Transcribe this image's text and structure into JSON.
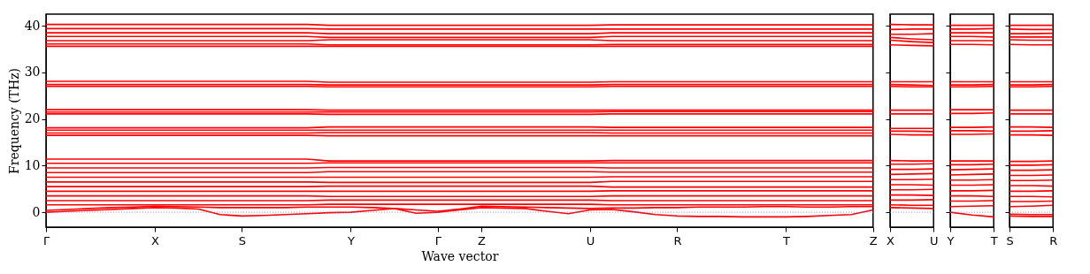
{
  "chart_data": [
    {
      "type": "line",
      "xlabel": "Wave vector",
      "ylabel": "Frequency (THz)",
      "ylim": [
        -3.2,
        42.5
      ],
      "yticks": [
        0,
        10,
        20,
        30,
        40
      ],
      "categories": [
        "Γ",
        null,
        null,
        null,
        null,
        "X",
        null,
        null,
        null,
        "S",
        null,
        null,
        null,
        null,
        "Y",
        null,
        null,
        null,
        "Γ",
        null,
        "Z",
        null,
        null,
        null,
        null,
        "U",
        null,
        null,
        null,
        "R",
        null,
        null,
        null,
        null,
        "T",
        null,
        null,
        null,
        "Z"
      ],
      "ref_lines": [
        {
          "axis": "y",
          "value": 0,
          "color": "#8080ff",
          "line_style": "dotted"
        }
      ],
      "series": [
        {
          "color": "#ff0000",
          "values": [
            40.3,
            40.3,
            40.3,
            40.3,
            40.3,
            40.3,
            40.3,
            40.3,
            40.3,
            40.3,
            40.3,
            40.3,
            40.3,
            40.1,
            40.1,
            40.1,
            40.1,
            40.1,
            40.1,
            40.1,
            40.1,
            40.1,
            40.1,
            40.1,
            40.1,
            40.1,
            40.2,
            40.2,
            40.2,
            40.2,
            40.2,
            40.2,
            40.2,
            40.2,
            40.2,
            40.2,
            40.2,
            40.2,
            40.2
          ]
        },
        {
          "color": "#ff0000",
          "values": [
            39.4,
            39.4,
            39.4,
            39.4,
            39.4,
            39.4,
            39.4,
            39.4,
            39.4,
            39.4,
            39.4,
            39.4,
            39.4,
            39.3,
            39.3,
            39.3,
            39.3,
            39.3,
            39.3,
            39.3,
            39.3,
            39.3,
            39.3,
            39.3,
            39.3,
            39.3,
            39.3,
            39.3,
            39.3,
            39.3,
            39.3,
            39.3,
            39.3,
            39.3,
            39.3,
            39.3,
            39.3,
            39.3,
            39.3
          ]
        },
        {
          "color": "#ff0000",
          "values": [
            38.5,
            38.5,
            38.5,
            38.5,
            38.5,
            38.5,
            38.5,
            38.5,
            38.5,
            38.5,
            38.5,
            38.5,
            38.5,
            38.3,
            38.3,
            38.3,
            38.3,
            38.3,
            38.3,
            38.3,
            38.3,
            38.3,
            38.3,
            38.3,
            38.3,
            38.3,
            38.5,
            38.5,
            38.5,
            38.5,
            38.5,
            38.5,
            38.5,
            38.5,
            38.5,
            38.5,
            38.5,
            38.5,
            38.5
          ]
        },
        {
          "color": "#ff0000",
          "values": [
            37.7,
            37.7,
            37.7,
            37.7,
            37.7,
            37.7,
            37.7,
            37.7,
            37.7,
            37.7,
            37.7,
            37.7,
            37.7,
            37.5,
            37.5,
            37.5,
            37.5,
            37.5,
            37.5,
            37.5,
            37.5,
            37.5,
            37.5,
            37.5,
            37.5,
            37.5,
            37.7,
            37.7,
            37.7,
            37.7,
            37.7,
            37.7,
            37.7,
            37.7,
            37.7,
            37.7,
            37.7,
            37.7,
            37.7
          ]
        },
        {
          "color": "#ff0000",
          "values": [
            36.8,
            36.8,
            36.8,
            36.8,
            36.8,
            36.8,
            36.8,
            36.8,
            36.8,
            36.8,
            36.8,
            36.8,
            36.8,
            37.0,
            37.0,
            37.0,
            37.0,
            37.0,
            37.0,
            37.0,
            37.0,
            37.0,
            37.0,
            37.0,
            37.0,
            37.0,
            36.8,
            36.8,
            36.8,
            36.8,
            36.8,
            36.8,
            36.8,
            36.8,
            36.8,
            36.8,
            36.8,
            36.8,
            36.8
          ]
        },
        {
          "color": "#ff0000",
          "values": [
            36.1,
            36.1,
            36.1,
            36.1,
            36.1,
            36.1,
            36.1,
            36.1,
            36.1,
            36.1,
            36.1,
            36.1,
            36.1,
            35.9,
            35.9,
            35.9,
            35.9,
            35.9,
            35.9,
            35.9,
            35.9,
            35.9,
            35.9,
            35.9,
            35.9,
            35.9,
            36.0,
            36.0,
            36.0,
            36.0,
            36.0,
            36.0,
            36.0,
            36.0,
            36.0,
            36.0,
            36.0,
            36.0,
            36.0
          ]
        },
        {
          "color": "#ff0000",
          "values": [
            35.6,
            35.6,
            35.6,
            35.6,
            35.6,
            35.6,
            35.6,
            35.6,
            35.6,
            35.6,
            35.6,
            35.6,
            35.6,
            35.6,
            35.6,
            35.6,
            35.6,
            35.6,
            35.6,
            35.6,
            35.6,
            35.6,
            35.6,
            35.6,
            35.6,
            35.6,
            35.6,
            35.6,
            35.6,
            35.6,
            35.6,
            35.6,
            35.6,
            35.6,
            35.6,
            35.6,
            35.6,
            35.6,
            35.6
          ]
        },
        {
          "color": "#ff0000",
          "values": [
            28.1,
            28.1,
            28.1,
            28.1,
            28.1,
            28.1,
            28.1,
            28.1,
            28.1,
            28.1,
            28.1,
            28.1,
            28.1,
            27.9,
            27.9,
            27.9,
            27.9,
            27.9,
            27.9,
            27.9,
            27.9,
            27.9,
            27.9,
            27.9,
            27.9,
            27.9,
            28.0,
            28.0,
            28.0,
            28.0,
            28.0,
            28.0,
            28.0,
            28.0,
            28.0,
            28.0,
            28.0,
            28.0,
            28.0
          ]
        },
        {
          "color": "#ff0000",
          "values": [
            27.4,
            27.4,
            27.4,
            27.4,
            27.4,
            27.4,
            27.4,
            27.4,
            27.4,
            27.4,
            27.4,
            27.4,
            27.4,
            27.3,
            27.3,
            27.3,
            27.3,
            27.3,
            27.3,
            27.3,
            27.3,
            27.3,
            27.3,
            27.3,
            27.3,
            27.3,
            27.4,
            27.4,
            27.4,
            27.4,
            27.4,
            27.4,
            27.4,
            27.4,
            27.4,
            27.4,
            27.4,
            27.4,
            27.4
          ]
        },
        {
          "color": "#ff0000",
          "values": [
            27.0,
            27.0,
            27.0,
            27.0,
            27.0,
            27.0,
            27.0,
            27.0,
            27.0,
            27.0,
            27.0,
            27.0,
            27.0,
            26.9,
            26.9,
            26.9,
            26.9,
            26.9,
            26.9,
            26.9,
            26.9,
            26.9,
            26.9,
            26.9,
            26.9,
            26.9,
            27.0,
            27.0,
            27.0,
            27.0,
            27.0,
            27.0,
            27.0,
            27.0,
            27.0,
            27.0,
            27.0,
            27.0,
            27.0
          ]
        },
        {
          "color": "#ff0000",
          "values": [
            22.0,
            22.0,
            22.0,
            22.0,
            22.0,
            22.0,
            22.0,
            22.0,
            22.0,
            22.0,
            22.0,
            22.0,
            22.0,
            21.9,
            21.9,
            21.9,
            21.9,
            21.9,
            21.9,
            21.9,
            21.9,
            21.9,
            21.9,
            21.9,
            21.9,
            21.9,
            21.9,
            21.9,
            21.9,
            21.9,
            21.9,
            21.9,
            21.9,
            21.9,
            21.9,
            21.9,
            21.9,
            21.9,
            21.9
          ]
        },
        {
          "color": "#ff0000",
          "values": [
            21.5,
            21.5,
            21.5,
            21.5,
            21.5,
            21.5,
            21.5,
            21.5,
            21.5,
            21.5,
            21.5,
            21.5,
            21.5,
            21.5,
            21.5,
            21.5,
            21.5,
            21.5,
            21.5,
            21.5,
            21.5,
            21.5,
            21.5,
            21.5,
            21.5,
            21.5,
            21.6,
            21.6,
            21.6,
            21.6,
            21.6,
            21.6,
            21.6,
            21.6,
            21.6,
            21.6,
            21.6,
            21.6,
            21.6
          ]
        },
        {
          "color": "#ff0000",
          "values": [
            21.1,
            21.1,
            21.1,
            21.1,
            21.1,
            21.1,
            21.1,
            21.1,
            21.1,
            21.1,
            21.1,
            21.1,
            21.1,
            21.0,
            21.0,
            21.0,
            21.0,
            21.0,
            21.0,
            21.0,
            21.0,
            21.0,
            21.0,
            21.0,
            21.0,
            21.0,
            21.1,
            21.1,
            21.1,
            21.1,
            21.1,
            21.1,
            21.1,
            21.1,
            21.1,
            21.1,
            21.1,
            21.1,
            21.1
          ]
        },
        {
          "color": "#ff0000",
          "values": [
            18.1,
            18.1,
            18.1,
            18.1,
            18.1,
            18.1,
            18.1,
            18.1,
            18.1,
            18.1,
            18.1,
            18.1,
            18.1,
            18.3,
            18.3,
            18.3,
            18.3,
            18.3,
            18.3,
            18.3,
            18.3,
            18.3,
            18.3,
            18.3,
            18.3,
            18.3,
            18.2,
            18.2,
            18.2,
            18.2,
            18.2,
            18.2,
            18.2,
            18.2,
            18.2,
            18.2,
            18.2,
            18.2,
            18.2
          ]
        },
        {
          "color": "#ff0000",
          "values": [
            17.6,
            17.6,
            17.6,
            17.6,
            17.6,
            17.6,
            17.6,
            17.6,
            17.6,
            17.6,
            17.6,
            17.6,
            17.6,
            17.6,
            17.6,
            17.6,
            17.6,
            17.6,
            17.6,
            17.6,
            17.6,
            17.6,
            17.6,
            17.6,
            17.6,
            17.6,
            17.6,
            17.6,
            17.6,
            17.6,
            17.6,
            17.6,
            17.6,
            17.6,
            17.6,
            17.6,
            17.6,
            17.6,
            17.6
          ]
        },
        {
          "color": "#ff0000",
          "values": [
            17.0,
            17.0,
            17.0,
            17.0,
            17.0,
            17.0,
            17.0,
            17.0,
            17.0,
            17.0,
            17.0,
            17.0,
            17.0,
            17.1,
            17.1,
            17.1,
            17.1,
            17.1,
            17.1,
            17.1,
            17.1,
            17.1,
            17.1,
            17.1,
            17.1,
            17.1,
            17.0,
            17.0,
            17.0,
            17.0,
            17.0,
            17.0,
            17.0,
            17.0,
            17.0,
            17.0,
            17.0,
            17.0,
            17.0
          ]
        },
        {
          "color": "#ff0000",
          "values": [
            16.5,
            16.5,
            16.5,
            16.5,
            16.5,
            16.5,
            16.5,
            16.5,
            16.5,
            16.5,
            16.5,
            16.5,
            16.5,
            16.4,
            16.4,
            16.4,
            16.4,
            16.4,
            16.4,
            16.4,
            16.4,
            16.4,
            16.4,
            16.4,
            16.4,
            16.4,
            16.4,
            16.4,
            16.4,
            16.4,
            16.4,
            16.4,
            16.4,
            16.4,
            16.4,
            16.4,
            16.4,
            16.4,
            16.4
          ]
        },
        {
          "color": "#ff0000",
          "values": [
            11.4,
            11.4,
            11.4,
            11.4,
            11.4,
            11.4,
            11.4,
            11.4,
            11.4,
            11.4,
            11.4,
            11.4,
            11.4,
            11.0,
            11.0,
            11.0,
            11.0,
            11.0,
            11.0,
            11.0,
            11.0,
            11.0,
            11.0,
            11.0,
            11.0,
            11.0,
            11.1,
            11.1,
            11.1,
            11.1,
            11.1,
            11.1,
            11.1,
            11.1,
            11.1,
            11.1,
            11.1,
            11.1,
            11.1
          ]
        },
        {
          "color": "#ff0000",
          "values": [
            10.5,
            10.5,
            10.5,
            10.5,
            10.5,
            10.5,
            10.5,
            10.5,
            10.5,
            10.5,
            10.5,
            10.5,
            10.5,
            10.6,
            10.6,
            10.6,
            10.6,
            10.6,
            10.6,
            10.6,
            10.6,
            10.6,
            10.6,
            10.6,
            10.6,
            10.6,
            10.6,
            10.6,
            10.6,
            10.6,
            10.6,
            10.6,
            10.6,
            10.6,
            10.6,
            10.6,
            10.6,
            10.6,
            10.6
          ]
        },
        {
          "color": "#ff0000",
          "values": [
            9.5,
            9.5,
            9.5,
            9.5,
            9.5,
            9.5,
            9.5,
            9.5,
            9.5,
            9.5,
            9.5,
            9.5,
            9.5,
            9.6,
            9.6,
            9.6,
            9.6,
            9.6,
            9.6,
            9.6,
            9.6,
            9.6,
            9.6,
            9.6,
            9.6,
            9.6,
            9.5,
            9.5,
            9.5,
            9.5,
            9.5,
            9.5,
            9.5,
            9.5,
            9.5,
            9.5,
            9.5,
            9.5,
            9.5
          ]
        },
        {
          "color": "#ff0000",
          "values": [
            8.5,
            8.5,
            8.5,
            8.5,
            8.5,
            8.5,
            8.5,
            8.5,
            8.5,
            8.5,
            8.5,
            8.5,
            8.5,
            8.7,
            8.7,
            8.7,
            8.7,
            8.7,
            8.7,
            8.7,
            8.7,
            8.7,
            8.7,
            8.7,
            8.7,
            8.7,
            8.6,
            8.6,
            8.6,
            8.6,
            8.6,
            8.6,
            8.6,
            8.6,
            8.6,
            8.6,
            8.6,
            8.6,
            8.6
          ]
        },
        {
          "color": "#ff0000",
          "values": [
            7.5,
            7.5,
            7.5,
            7.5,
            7.5,
            7.5,
            7.5,
            7.5,
            7.5,
            7.5,
            7.5,
            7.5,
            7.5,
            7.5,
            7.5,
            7.5,
            7.5,
            7.5,
            7.5,
            7.5,
            7.5,
            7.5,
            7.5,
            7.5,
            7.5,
            7.5,
            7.6,
            7.6,
            7.6,
            7.6,
            7.6,
            7.6,
            7.6,
            7.6,
            7.6,
            7.6,
            7.6,
            7.6,
            7.6
          ]
        },
        {
          "color": "#ff0000",
          "values": [
            6.5,
            6.5,
            6.5,
            6.5,
            6.5,
            6.5,
            6.5,
            6.5,
            6.5,
            6.5,
            6.5,
            6.5,
            6.5,
            6.4,
            6.4,
            6.4,
            6.4,
            6.4,
            6.4,
            6.4,
            6.4,
            6.4,
            6.4,
            6.4,
            6.4,
            6.4,
            6.6,
            6.6,
            6.6,
            6.6,
            6.6,
            6.6,
            6.6,
            6.6,
            6.6,
            6.6,
            6.6,
            6.6,
            6.6
          ]
        },
        {
          "color": "#ff0000",
          "values": [
            5.5,
            5.5,
            5.5,
            5.5,
            5.5,
            5.5,
            5.5,
            5.5,
            5.5,
            5.5,
            5.5,
            5.5,
            5.5,
            5.6,
            5.6,
            5.6,
            5.6,
            5.6,
            5.6,
            5.6,
            5.6,
            5.6,
            5.6,
            5.6,
            5.6,
            5.6,
            5.4,
            5.4,
            5.4,
            5.4,
            5.4,
            5.4,
            5.4,
            5.4,
            5.4,
            5.4,
            5.4,
            5.4,
            5.4
          ]
        },
        {
          "color": "#ff0000",
          "values": [
            4.5,
            4.5,
            4.5,
            4.5,
            4.5,
            4.5,
            4.5,
            4.5,
            4.5,
            4.5,
            4.5,
            4.5,
            4.5,
            4.5,
            4.5,
            4.5,
            4.5,
            4.5,
            4.5,
            4.5,
            4.5,
            4.5,
            4.5,
            4.5,
            4.5,
            4.5,
            4.6,
            4.6,
            4.6,
            4.6,
            4.6,
            4.6,
            4.6,
            4.6,
            4.6,
            4.6,
            4.6,
            4.6,
            4.6
          ]
        },
        {
          "color": "#ff0000",
          "values": [
            3.5,
            3.5,
            3.5,
            3.5,
            3.5,
            3.5,
            3.5,
            3.5,
            3.5,
            3.5,
            3.5,
            3.5,
            3.5,
            3.4,
            3.4,
            3.4,
            3.4,
            3.4,
            3.4,
            3.4,
            3.4,
            3.4,
            3.4,
            3.4,
            3.4,
            3.4,
            3.5,
            3.5,
            3.5,
            3.5,
            3.5,
            3.5,
            3.5,
            3.5,
            3.5,
            3.5,
            3.5,
            3.5,
            3.5
          ]
        },
        {
          "color": "#ff0000",
          "values": [
            2.5,
            2.5,
            2.5,
            2.5,
            2.5,
            2.5,
            2.5,
            2.5,
            2.5,
            2.5,
            2.5,
            2.5,
            2.5,
            2.6,
            2.6,
            2.6,
            2.6,
            2.6,
            2.6,
            2.6,
            2.6,
            2.6,
            2.6,
            2.6,
            2.6,
            2.6,
            2.5,
            2.5,
            2.5,
            2.5,
            2.5,
            2.5,
            2.5,
            2.5,
            2.5,
            2.5,
            2.5,
            2.5,
            2.5
          ]
        },
        {
          "color": "#ff0000",
          "values": [
            1.6,
            1.6,
            1.6,
            1.6,
            1.6,
            1.6,
            1.6,
            1.6,
            1.6,
            1.6,
            1.6,
            1.6,
            1.6,
            1.7,
            1.7,
            1.7,
            1.7,
            1.7,
            1.7,
            1.7,
            1.7,
            1.7,
            1.7,
            1.7,
            1.7,
            1.7,
            1.6,
            1.6,
            1.6,
            1.6,
            1.6,
            1.6,
            1.6,
            1.6,
            1.6,
            1.6,
            1.6,
            1.6,
            1.6
          ]
        },
        {
          "color": "#ff0000",
          "values": [
            0.4,
            0.6,
            0.8,
            1.0,
            1.1,
            1.3,
            1.2,
            1.1,
            1.0,
            1.0,
            1.0,
            1.0,
            1.1,
            1.1,
            1.1,
            1.0,
            0.8,
            0.5,
            0.2,
            0.7,
            1.3,
            1.2,
            1.1,
            1.0,
            0.9,
            0.8,
            0.9,
            0.9,
            1.0,
            1.0,
            1.1,
            1.1,
            1.1,
            1.2,
            1.2,
            1.1,
            1.1,
            1.2,
            1.2
          ]
        },
        {
          "color": "#ff0000",
          "values": [
            0,
            0.2,
            0.4,
            0.6,
            0.8,
            1.0,
            0.9,
            0.7,
            -0.5,
            -0.8,
            -0.7,
            -0.5,
            -0.3,
            -0.1,
            0,
            0.4,
            0.8,
            -0.2,
            0,
            0.5,
            1.0,
            0.9,
            0.8,
            0.2,
            -0.3,
            0.5,
            0.6,
            0.1,
            -0.5,
            -0.8,
            -0.9,
            -0.9,
            -1.0,
            -1.0,
            -1.0,
            -0.9,
            -0.7,
            -0.5,
            0.5
          ]
        }
      ]
    },
    {
      "type": "line",
      "ylim": [
        -3.2,
        42.5
      ],
      "yticks": [
        0,
        10,
        20,
        30,
        40
      ],
      "tick_labels": "x",
      "categories": [
        "X",
        null,
        "U"
      ],
      "ref_lines": [
        {
          "axis": "y",
          "value": 0,
          "color": "#8080ff",
          "line_style": "dotted"
        }
      ],
      "series": [
        {
          "color": "#ff0000",
          "values": [
            40.3,
            40.2,
            40.2
          ]
        },
        {
          "color": "#ff0000",
          "values": [
            39.2,
            39.3,
            39.3
          ]
        },
        {
          "color": "#ff0000",
          "values": [
            38.2,
            38.2,
            38.3
          ]
        },
        {
          "color": "#ff0000",
          "values": [
            37.5,
            37.2,
            37.0
          ]
        },
        {
          "color": "#ff0000",
          "values": [
            36.9,
            36.6,
            36.4
          ]
        },
        {
          "color": "#ff0000",
          "values": [
            35.9,
            35.8,
            35.7
          ]
        },
        {
          "color": "#ff0000",
          "values": [
            28.0,
            28.0,
            28.0
          ]
        },
        {
          "color": "#ff0000",
          "values": [
            27.4,
            27.3,
            27.2
          ]
        },
        {
          "color": "#ff0000",
          "values": [
            27.0,
            26.9,
            26.9
          ]
        },
        {
          "color": "#ff0000",
          "values": [
            21.9,
            21.9,
            21.9
          ]
        },
        {
          "color": "#ff0000",
          "values": [
            21.1,
            21.1,
            21.1
          ]
        },
        {
          "color": "#ff0000",
          "values": [
            18.0,
            18.0,
            18.0
          ]
        },
        {
          "color": "#ff0000",
          "values": [
            17.4,
            17.4,
            17.3
          ]
        },
        {
          "color": "#ff0000",
          "values": [
            16.7,
            16.6,
            16.6
          ]
        },
        {
          "color": "#ff0000",
          "values": [
            11.1,
            11.0,
            11.0
          ]
        },
        {
          "color": "#ff0000",
          "values": [
            10.3,
            10.3,
            10.4
          ]
        },
        {
          "color": "#ff0000",
          "values": [
            9.2,
            9.2,
            9.3
          ]
        },
        {
          "color": "#ff0000",
          "values": [
            8.1,
            8.2,
            8.3
          ]
        },
        {
          "color": "#ff0000",
          "values": [
            7.0,
            7.0,
            7.1
          ]
        },
        {
          "color": "#ff0000",
          "values": [
            5.9,
            5.9,
            5.8
          ]
        },
        {
          "color": "#ff0000",
          "values": [
            4.8,
            4.8,
            4.9
          ]
        },
        {
          "color": "#ff0000",
          "values": [
            3.7,
            3.7,
            3.6
          ]
        },
        {
          "color": "#ff0000",
          "values": [
            2.6,
            2.6,
            2.7
          ]
        },
        {
          "color": "#ff0000",
          "values": [
            1.6,
            1.5,
            1.5
          ]
        },
        {
          "color": "#ff0000",
          "values": [
            1.0,
            0.9,
            0.8
          ]
        }
      ]
    },
    {
      "type": "line",
      "ylim": [
        -3.2,
        42.5
      ],
      "yticks": [
        0,
        10,
        20,
        30,
        40
      ],
      "tick_labels": "x",
      "categories": [
        "Y",
        null,
        "T"
      ],
      "ref_lines": [
        {
          "axis": "y",
          "value": 0,
          "color": "#8080ff",
          "line_style": "dotted"
        }
      ],
      "series": [
        {
          "color": "#ff0000",
          "values": [
            40.1,
            40.1,
            40.1
          ]
        },
        {
          "color": "#ff0000",
          "values": [
            39.3,
            39.3,
            39.4
          ]
        },
        {
          "color": "#ff0000",
          "values": [
            38.5,
            38.5,
            38.5
          ]
        },
        {
          "color": "#ff0000",
          "values": [
            37.7,
            37.7,
            37.6
          ]
        },
        {
          "color": "#ff0000",
          "values": [
            36.8,
            36.8,
            36.8
          ]
        },
        {
          "color": "#ff0000",
          "values": [
            36.0,
            36.0,
            35.9
          ]
        },
        {
          "color": "#ff0000",
          "values": [
            28.0,
            28.0,
            28.0
          ]
        },
        {
          "color": "#ff0000",
          "values": [
            27.3,
            27.3,
            27.4
          ]
        },
        {
          "color": "#ff0000",
          "values": [
            26.9,
            26.9,
            27.0
          ]
        },
        {
          "color": "#ff0000",
          "values": [
            22.0,
            22.0,
            22.0
          ]
        },
        {
          "color": "#ff0000",
          "values": [
            21.2,
            21.2,
            21.3
          ]
        },
        {
          "color": "#ff0000",
          "values": [
            18.2,
            18.2,
            18.3
          ]
        },
        {
          "color": "#ff0000",
          "values": [
            17.5,
            17.5,
            17.4
          ]
        },
        {
          "color": "#ff0000",
          "values": [
            16.7,
            16.7,
            16.8
          ]
        },
        {
          "color": "#ff0000",
          "values": [
            11.0,
            11.0,
            11.0
          ]
        },
        {
          "color": "#ff0000",
          "values": [
            10.2,
            10.2,
            10.3
          ]
        },
        {
          "color": "#ff0000",
          "values": [
            9.1,
            9.2,
            9.3
          ]
        },
        {
          "color": "#ff0000",
          "values": [
            8.0,
            8.1,
            8.2
          ]
        },
        {
          "color": "#ff0000",
          "values": [
            6.9,
            6.9,
            7.0
          ]
        },
        {
          "color": "#ff0000",
          "values": [
            5.8,
            5.8,
            5.9
          ]
        },
        {
          "color": "#ff0000",
          "values": [
            4.6,
            4.6,
            4.7
          ]
        },
        {
          "color": "#ff0000",
          "values": [
            3.5,
            3.5,
            3.4
          ]
        },
        {
          "color": "#ff0000",
          "values": [
            2.4,
            2.4,
            2.5
          ]
        },
        {
          "color": "#ff0000",
          "values": [
            1.2,
            1.3,
            1.4
          ]
        },
        {
          "color": "#ff0000",
          "values": [
            0,
            -0.6,
            -1.0
          ]
        }
      ]
    },
    {
      "type": "line",
      "ylim": [
        -3.2,
        42.5
      ],
      "yticks": [
        0,
        10,
        20,
        30,
        40
      ],
      "tick_labels": "x",
      "categories": [
        "S",
        null,
        "R"
      ],
      "ref_lines": [
        {
          "axis": "y",
          "value": 0,
          "color": "#8080ff",
          "line_style": "dotted"
        }
      ],
      "series": [
        {
          "color": "#ff0000",
          "values": [
            40.1,
            40.1,
            40.1
          ]
        },
        {
          "color": "#ff0000",
          "values": [
            39.3,
            39.2,
            39.2
          ]
        },
        {
          "color": "#ff0000",
          "values": [
            38.3,
            38.3,
            38.4
          ]
        },
        {
          "color": "#ff0000",
          "values": [
            37.6,
            37.6,
            37.6
          ]
        },
        {
          "color": "#ff0000",
          "values": [
            37.0,
            36.9,
            36.9
          ]
        },
        {
          "color": "#ff0000",
          "values": [
            36.0,
            35.9,
            35.9
          ]
        },
        {
          "color": "#ff0000",
          "values": [
            28.0,
            28.0,
            28.0
          ]
        },
        {
          "color": "#ff0000",
          "values": [
            27.3,
            27.3,
            27.4
          ]
        },
        {
          "color": "#ff0000",
          "values": [
            26.9,
            26.9,
            27.0
          ]
        },
        {
          "color": "#ff0000",
          "values": [
            21.9,
            21.9,
            21.9
          ]
        },
        {
          "color": "#ff0000",
          "values": [
            21.1,
            21.1,
            21.1
          ]
        },
        {
          "color": "#ff0000",
          "values": [
            18.3,
            18.3,
            18.2
          ]
        },
        {
          "color": "#ff0000",
          "values": [
            17.4,
            17.4,
            17.5
          ]
        },
        {
          "color": "#ff0000",
          "values": [
            16.6,
            16.6,
            16.5
          ]
        },
        {
          "color": "#ff0000",
          "values": [
            10.9,
            10.9,
            11.0
          ]
        },
        {
          "color": "#ff0000",
          "values": [
            10.1,
            10.1,
            10.2
          ]
        },
        {
          "color": "#ff0000",
          "values": [
            9.0,
            9.0,
            9.1
          ]
        },
        {
          "color": "#ff0000",
          "values": [
            7.9,
            7.9,
            8.0
          ]
        },
        {
          "color": "#ff0000",
          "values": [
            6.8,
            6.8,
            6.9
          ]
        },
        {
          "color": "#ff0000",
          "values": [
            5.7,
            5.7,
            5.6
          ]
        },
        {
          "color": "#ff0000",
          "values": [
            4.5,
            4.5,
            4.6
          ]
        },
        {
          "color": "#ff0000",
          "values": [
            3.4,
            3.4,
            3.3
          ]
        },
        {
          "color": "#ff0000",
          "values": [
            2.3,
            2.3,
            2.4
          ]
        },
        {
          "color": "#ff0000",
          "values": [
            1.2,
            1.3,
            1.5
          ]
        },
        {
          "color": "#ff0000",
          "values": [
            -0.4,
            -0.5,
            -0.5
          ]
        },
        {
          "color": "#ff0000",
          "values": [
            -0.8,
            -0.9,
            -0.9
          ]
        }
      ]
    }
  ]
}
